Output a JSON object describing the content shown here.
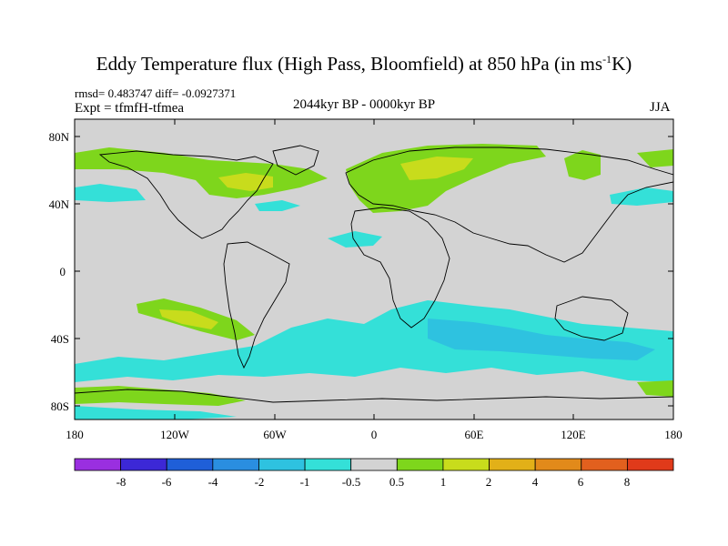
{
  "title": {
    "main": "Eddy Temperature flux (High Pass, Bloomfield) at 850 hPa (in ms",
    "superscript": "-1",
    "suffix": "K)"
  },
  "stats": {
    "rmsd_line": "rmsd= 0.483747 diff= -0.0927371",
    "expt_line": "Expt = tfmfH-tfmea"
  },
  "period": "2044kyr BP - 0000kyr BP",
  "season": "JJA",
  "axes": {
    "lat_labels": [
      "80N",
      "40N",
      "0",
      "40S",
      "80S"
    ],
    "lon_labels": [
      "180",
      "120W",
      "60W",
      "0",
      "60E",
      "120E",
      "180"
    ]
  },
  "colorbar": {
    "colors": [
      "#9a2fe0",
      "#3c28d6",
      "#1f5fd8",
      "#2a8ee0",
      "#2ec2e0",
      "#34e0d8",
      "#d3d3d3",
      "#7ed61c",
      "#c8dc1c",
      "#e2b018",
      "#e28a1a",
      "#e2601e",
      "#e03a1a"
    ],
    "labels": [
      "-8",
      "-6",
      "-4",
      "-2",
      "-1",
      "-0.5",
      "0.5",
      "1",
      "2",
      "4",
      "6",
      "8"
    ]
  },
  "map_colors": {
    "neutral": "#d3d3d3",
    "cyan": "#34e0d8",
    "light_blue": "#2ec2e0",
    "green": "#7ed61c",
    "yellow_green": "#c8dc1c",
    "coast": "#000000"
  }
}
